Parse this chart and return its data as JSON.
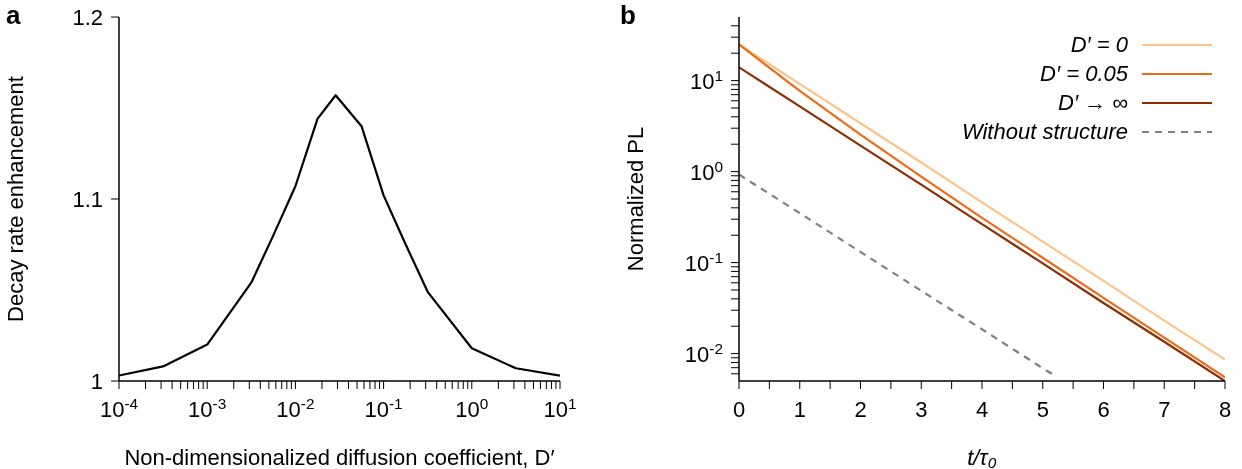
{
  "chart_data": [
    {
      "type": "line",
      "title": "a",
      "xlabel": "Non-dimensionalized diffusion coefficient, D′",
      "ylabel": "Decay rate enhancement",
      "log": "x",
      "xlim": [
        0.0001,
        10
      ],
      "ylim": [
        1,
        1.2
      ],
      "yticks": [
        1,
        1.1,
        1.2
      ],
      "xticks": [
        {
          "value": 0.0001,
          "label": "10$^{-4}$"
        },
        {
          "value": 0.001,
          "label": "10$^{-3}$"
        },
        {
          "value": 0.01,
          "label": "10$^{-2}$"
        },
        {
          "value": 0.1,
          "label": "10$^{-1}$"
        },
        {
          "value": 1,
          "label": "10$^{0}$"
        },
        {
          "value": 10,
          "label": "10$^{1}$"
        },
        {
          "value": 0.0002,
          "label": null
        },
        {
          "value": 0.0003,
          "label": null
        },
        {
          "value": 0.0004,
          "label": null
        },
        {
          "value": 0.0005,
          "label": null
        },
        {
          "value": 0.0006,
          "label": null
        },
        {
          "value": 0.0007,
          "label": null
        },
        {
          "value": 0.0008,
          "label": null
        },
        {
          "value": 0.0009,
          "label": null
        },
        {
          "value": 0.002,
          "label": null
        },
        {
          "value": 0.003,
          "label": null
        },
        {
          "value": 0.004,
          "label": null
        },
        {
          "value": 0.005,
          "label": null
        },
        {
          "value": 0.006,
          "label": null
        },
        {
          "value": 0.007,
          "label": null
        },
        {
          "value": 0.008,
          "label": null
        },
        {
          "value": 0.009,
          "label": null
        },
        {
          "value": 0.02,
          "label": null
        },
        {
          "value": 0.03,
          "label": null
        },
        {
          "value": 0.04,
          "label": null
        },
        {
          "value": 0.05,
          "label": null
        },
        {
          "value": 0.06,
          "label": null
        },
        {
          "value": 0.07,
          "label": null
        },
        {
          "value": 0.08,
          "label": null
        },
        {
          "value": 0.09,
          "label": null
        },
        {
          "value": 0.2,
          "label": null
        },
        {
          "value": 0.3,
          "label": null
        },
        {
          "value": 0.4,
          "label": null
        },
        {
          "value": 0.5,
          "label": null
        },
        {
          "value": 0.6,
          "label": null
        },
        {
          "value": 0.7,
          "label": null
        },
        {
          "value": 0.8,
          "label": null
        },
        {
          "value": 0.9,
          "label": null
        },
        {
          "value": 2,
          "label": null
        },
        {
          "value": 3,
          "label": null
        },
        {
          "value": 4,
          "label": null
        },
        {
          "value": 5,
          "label": null
        },
        {
          "value": 6,
          "label": null
        },
        {
          "value": 7,
          "label": null
        },
        {
          "value": 8,
          "label": null
        },
        {
          "value": 9,
          "label": null
        }
      ],
      "x": [
        0.0001,
        0.000316,
        0.001,
        0.00316,
        0.00562,
        0.01,
        0.0178,
        0.0286,
        0.0562,
        0.1,
        0.178,
        0.316,
        1,
        3.16,
        10
      ],
      "series": [
        {
          "color": "#000000",
          "values": [
            1.003,
            1.008,
            1.02,
            1.054,
            1.08,
            1.107,
            1.144,
            1.157,
            1.14,
            1.102,
            1.075,
            1.049,
            1.018,
            1.007,
            1.003
          ]
        }
      ]
    },
    {
      "type": "line",
      "title": "b",
      "xlabel": "t/τ₀",
      "ylabel": "Normalized PL",
      "log": "y",
      "legend": "top right",
      "xlim": [
        0,
        8
      ],
      "ylim": [
        0.005,
        50
      ],
      "xticks": [
        0,
        1,
        2,
        3,
        4,
        5,
        6,
        7,
        8,
        {
          "value": 0.5,
          "label": null
        },
        {
          "value": 1.5,
          "label": null
        },
        {
          "value": 2.5,
          "label": null
        },
        {
          "value": 3.5,
          "label": null
        },
        {
          "value": 4.5,
          "label": null
        },
        {
          "value": 5.5,
          "label": null
        },
        {
          "value": 6.5,
          "label": null
        },
        {
          "value": 7.5,
          "label": null
        }
      ],
      "yticks": [
        {
          "value": 0.01,
          "label": "10$^{-2}$"
        },
        {
          "value": 0.1,
          "label": "10$^{-1}$"
        },
        {
          "value": 1,
          "label": "10$^{0}$"
        },
        {
          "value": 10,
          "label": "10$^{1}$"
        },
        {
          "value": 0.006,
          "label": null
        },
        {
          "value": 0.007,
          "label": null
        },
        {
          "value": 0.008,
          "label": null
        },
        {
          "value": 0.009,
          "label": null
        },
        {
          "value": 0.02,
          "label": null
        },
        {
          "value": 0.03,
          "label": null
        },
        {
          "value": 0.04,
          "label": null
        },
        {
          "value": 0.05,
          "label": null
        },
        {
          "value": 0.06,
          "label": null
        },
        {
          "value": 0.07,
          "label": null
        },
        {
          "value": 0.08,
          "label": null
        },
        {
          "value": 0.09,
          "label": null
        },
        {
          "value": 0.2,
          "label": null
        },
        {
          "value": 0.3,
          "label": null
        },
        {
          "value": 0.4,
          "label": null
        },
        {
          "value": 0.5,
          "label": null
        },
        {
          "value": 0.6,
          "label": null
        },
        {
          "value": 0.7,
          "label": null
        },
        {
          "value": 0.8,
          "label": null
        },
        {
          "value": 0.9,
          "label": null
        },
        {
          "value": 2,
          "label": null
        },
        {
          "value": 3,
          "label": null
        },
        {
          "value": 4,
          "label": null
        },
        {
          "value": 5,
          "label": null
        },
        {
          "value": 6,
          "label": null
        },
        {
          "value": 7,
          "label": null
        },
        {
          "value": 8,
          "label": null
        },
        {
          "value": 9,
          "label": null
        },
        {
          "value": 20,
          "label": null
        },
        {
          "value": 30,
          "label": null
        },
        {
          "value": 40,
          "label": null
        }
      ],
      "x": [
        0,
        1,
        2,
        3,
        4,
        5,
        6,
        7,
        8
      ],
      "series": [
        {
          "name": "D′ = 0",
          "color": "#fdc48a",
          "line_style": "solid",
          "values": [
            25,
            9.2,
            3.4,
            1.26,
            0.46,
            0.17,
            0.063,
            0.023,
            0.0086
          ]
        },
        {
          "name": "D′ = 0.05",
          "color": "#f06a12",
          "line_style": "solid",
          "values": [
            25,
            7.7,
            2.55,
            0.88,
            0.31,
            0.113,
            0.041,
            0.015,
            0.0055
          ]
        },
        {
          "name": "D′ → ∞",
          "color": "#8c2d04",
          "line_style": "solid",
          "values": [
            14,
            5.2,
            1.93,
            0.72,
            0.265,
            0.098,
            0.036,
            0.0135,
            0.005
          ]
        },
        {
          "name": "Without structure",
          "color": "#808080",
          "line_style": "dashed",
          "x": [
            0,
            1,
            2,
            3,
            4,
            5,
            5.15
          ],
          "values": [
            0.93,
            0.35,
            0.131,
            0.049,
            0.0185,
            0.0069,
            0.006
          ]
        }
      ]
    }
  ]
}
